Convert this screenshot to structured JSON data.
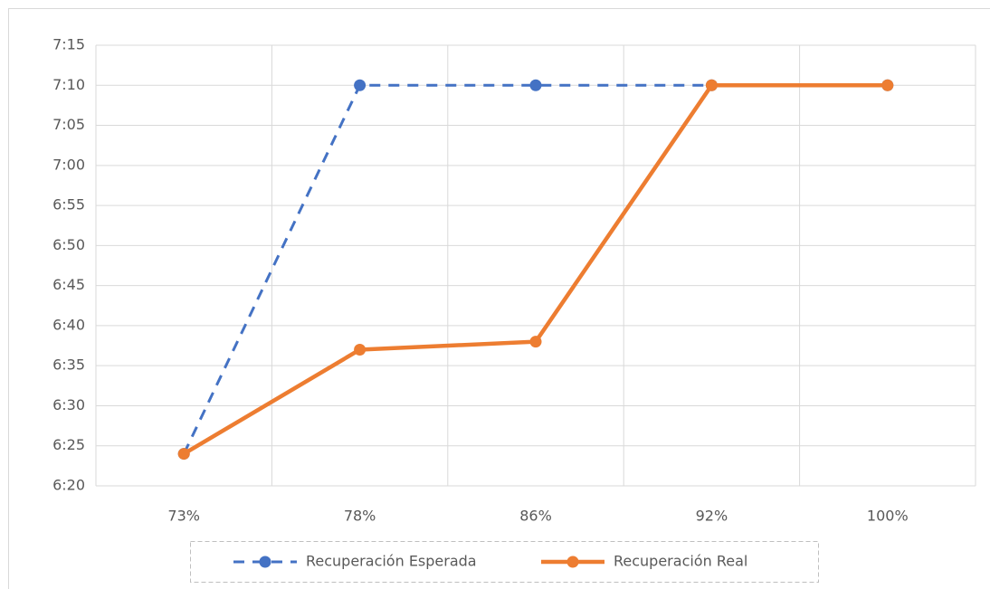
{
  "chart_data": {
    "type": "line",
    "categories": [
      "73%",
      "78%",
      "86%",
      "92%",
      "100%"
    ],
    "series": [
      {
        "name": "Recuperación Esperada",
        "color": "#4472c4",
        "dash": true,
        "values": [
          384,
          430,
          430,
          430,
          430
        ]
      },
      {
        "name": "Recuperación Real",
        "color": "#ed7d31",
        "dash": false,
        "values": [
          384,
          397,
          398,
          430,
          430
        ]
      }
    ],
    "ylim": [
      380,
      435
    ],
    "yticks": [
      {
        "value": 380,
        "label": "6:20"
      },
      {
        "value": 385,
        "label": "6:25"
      },
      {
        "value": 390,
        "label": "6:30"
      },
      {
        "value": 395,
        "label": "6:35"
      },
      {
        "value": 400,
        "label": "6:40"
      },
      {
        "value": 405,
        "label": "6:45"
      },
      {
        "value": 410,
        "label": "6:50"
      },
      {
        "value": 415,
        "label": "6:55"
      },
      {
        "value": 420,
        "label": "7:00"
      },
      {
        "value": 425,
        "label": "7:05"
      },
      {
        "value": 430,
        "label": "7:10"
      },
      {
        "value": 435,
        "label": "7:15"
      }
    ],
    "grid": true,
    "legend": "bottom"
  }
}
